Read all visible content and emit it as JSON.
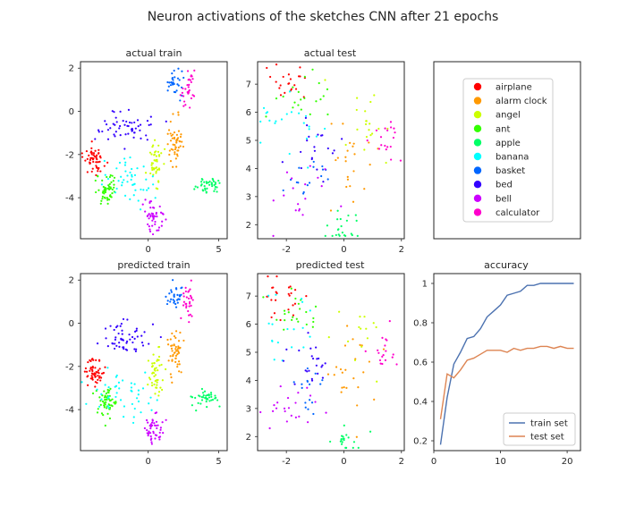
{
  "figure": {
    "title": "Neuron activations of the sketches CNN after 21 epochs"
  },
  "palette": {
    "airplane": "#ff0000",
    "alarm clock": "#ff9900",
    "angel": "#ccff00",
    "ant": "#33ff00",
    "apple": "#00ff66",
    "banana": "#00ffff",
    "basket": "#0066ff",
    "bed": "#3300ff",
    "bell": "#cc00ff",
    "calculator": "#ff00cc"
  },
  "chart_data": [
    {
      "id": "actual-train",
      "type": "scatter",
      "title": "actual train",
      "xlim": [
        -4.8,
        5.6
      ],
      "ylim": [
        -5.9,
        2.3
      ],
      "xticks": [
        0,
        5
      ],
      "yticks": [
        2,
        0,
        -2,
        -4
      ],
      "clusters": [
        {
          "class": "airplane",
          "cx": -3.8,
          "cy": -2.3,
          "sx": 0.35,
          "sy": 0.3,
          "n": 55
        },
        {
          "class": "alarm clock",
          "cx": 1.9,
          "cy": -1.3,
          "sx": 0.3,
          "sy": 0.55,
          "n": 50
        },
        {
          "class": "angel",
          "cx": 0.5,
          "cy": -2.3,
          "sx": 0.3,
          "sy": 0.5,
          "n": 45
        },
        {
          "class": "ant",
          "cx": -2.9,
          "cy": -3.6,
          "sx": 0.35,
          "sy": 0.4,
          "n": 55
        },
        {
          "class": "apple",
          "cx": 4.3,
          "cy": -3.4,
          "sx": 0.45,
          "sy": 0.2,
          "n": 40
        },
        {
          "class": "banana",
          "cx": -1.5,
          "cy": -3.2,
          "sx": 1.0,
          "sy": 0.55,
          "n": 45
        },
        {
          "class": "basket",
          "cx": 1.9,
          "cy": 1.3,
          "sx": 0.3,
          "sy": 0.3,
          "n": 30
        },
        {
          "class": "bed",
          "cx": -1.6,
          "cy": -0.7,
          "sx": 0.9,
          "sy": 0.35,
          "n": 55
        },
        {
          "class": "bell",
          "cx": 0.4,
          "cy": -4.9,
          "sx": 0.35,
          "sy": 0.4,
          "n": 45
        },
        {
          "class": "calculator",
          "cx": 2.9,
          "cy": 1.1,
          "sx": 0.25,
          "sy": 0.4,
          "n": 30
        }
      ]
    },
    {
      "id": "actual-test",
      "type": "scatter",
      "title": "actual test",
      "xlim": [
        -3.0,
        2.1
      ],
      "ylim": [
        1.5,
        7.8
      ],
      "xticks": [
        -2,
        0,
        2
      ],
      "yticks": [
        7,
        6,
        5,
        4,
        3,
        2
      ],
      "clusters": [
        {
          "class": "airplane",
          "cx": -2.0,
          "cy": 7.0,
          "sx": 0.45,
          "sy": 0.35,
          "n": 22
        },
        {
          "class": "alarm clock",
          "cx": 0.2,
          "cy": 4.0,
          "sx": 0.5,
          "sy": 0.7,
          "n": 22
        },
        {
          "class": "angel",
          "cx": 0.6,
          "cy": 5.3,
          "sx": 0.45,
          "sy": 0.7,
          "n": 20
        },
        {
          "class": "ant",
          "cx": -1.6,
          "cy": 6.4,
          "sx": 0.45,
          "sy": 0.45,
          "n": 20
        },
        {
          "class": "apple",
          "cx": 0.1,
          "cy": 1.9,
          "sx": 0.35,
          "sy": 0.3,
          "n": 22
        },
        {
          "class": "banana",
          "cx": -2.0,
          "cy": 5.6,
          "sx": 0.55,
          "sy": 0.8,
          "n": 22
        },
        {
          "class": "basket",
          "cx": -1.4,
          "cy": 3.6,
          "sx": 0.45,
          "sy": 0.45,
          "n": 16
        },
        {
          "class": "bed",
          "cx": -1.1,
          "cy": 4.6,
          "sx": 0.4,
          "sy": 0.6,
          "n": 20
        },
        {
          "class": "bell",
          "cx": -1.7,
          "cy": 3.0,
          "sx": 0.6,
          "sy": 0.5,
          "n": 18
        },
        {
          "class": "calculator",
          "cx": 1.5,
          "cy": 5.2,
          "sx": 0.25,
          "sy": 0.4,
          "n": 18
        }
      ]
    },
    {
      "id": "legend-panel",
      "type": "legend",
      "entries": [
        "airplane",
        "alarm clock",
        "angel",
        "ant",
        "apple",
        "banana",
        "basket",
        "bed",
        "bell",
        "calculator"
      ]
    },
    {
      "id": "predicted-train",
      "type": "scatter",
      "title": "predicted train",
      "xlim": [
        -4.8,
        5.6
      ],
      "ylim": [
        -5.9,
        2.3
      ],
      "xticks": [
        0,
        5
      ],
      "yticks": [
        2,
        0,
        -2,
        -4
      ],
      "clusters": [
        {
          "class": "airplane",
          "cx": -3.8,
          "cy": -2.3,
          "sx": 0.35,
          "sy": 0.3,
          "n": 55
        },
        {
          "class": "alarm clock",
          "cx": 1.9,
          "cy": -1.3,
          "sx": 0.3,
          "sy": 0.55,
          "n": 50
        },
        {
          "class": "angel",
          "cx": 0.5,
          "cy": -2.3,
          "sx": 0.3,
          "sy": 0.5,
          "n": 45
        },
        {
          "class": "ant",
          "cx": -2.9,
          "cy": -3.6,
          "sx": 0.35,
          "sy": 0.4,
          "n": 55
        },
        {
          "class": "apple",
          "cx": 4.3,
          "cy": -3.4,
          "sx": 0.45,
          "sy": 0.2,
          "n": 40
        },
        {
          "class": "banana",
          "cx": -1.5,
          "cy": -3.2,
          "sx": 1.0,
          "sy": 0.55,
          "n": 45
        },
        {
          "class": "basket",
          "cx": 1.9,
          "cy": 1.3,
          "sx": 0.3,
          "sy": 0.3,
          "n": 30
        },
        {
          "class": "bed",
          "cx": -1.6,
          "cy": -0.7,
          "sx": 0.9,
          "sy": 0.35,
          "n": 55
        },
        {
          "class": "bell",
          "cx": 0.4,
          "cy": -4.9,
          "sx": 0.35,
          "sy": 0.4,
          "n": 45
        },
        {
          "class": "calculator",
          "cx": 2.9,
          "cy": 1.1,
          "sx": 0.25,
          "sy": 0.4,
          "n": 30
        }
      ]
    },
    {
      "id": "predicted-test",
      "type": "scatter",
      "title": "predicted test",
      "xlim": [
        -3.0,
        2.1
      ],
      "ylim": [
        1.5,
        7.8
      ],
      "xticks": [
        -2,
        0,
        2
      ],
      "yticks": [
        7,
        6,
        5,
        4,
        3,
        2
      ],
      "clusters": [
        {
          "class": "airplane",
          "cx": -2.0,
          "cy": 7.0,
          "sx": 0.45,
          "sy": 0.35,
          "n": 24
        },
        {
          "class": "alarm clock",
          "cx": 0.2,
          "cy": 4.0,
          "sx": 0.5,
          "sy": 0.7,
          "n": 24
        },
        {
          "class": "angel",
          "cx": 0.6,
          "cy": 5.3,
          "sx": 0.45,
          "sy": 0.7,
          "n": 14
        },
        {
          "class": "ant",
          "cx": -1.6,
          "cy": 6.4,
          "sx": 0.45,
          "sy": 0.45,
          "n": 22
        },
        {
          "class": "apple",
          "cx": 0.1,
          "cy": 1.9,
          "sx": 0.35,
          "sy": 0.3,
          "n": 20
        },
        {
          "class": "banana",
          "cx": -2.0,
          "cy": 5.6,
          "sx": 0.55,
          "sy": 0.8,
          "n": 18
        },
        {
          "class": "basket",
          "cx": -1.4,
          "cy": 3.6,
          "sx": 0.45,
          "sy": 0.45,
          "n": 16
        },
        {
          "class": "bed",
          "cx": -1.1,
          "cy": 4.6,
          "sx": 0.4,
          "sy": 0.6,
          "n": 22
        },
        {
          "class": "bell",
          "cx": -1.7,
          "cy": 3.0,
          "sx": 0.6,
          "sy": 0.5,
          "n": 22
        },
        {
          "class": "calculator",
          "cx": 1.5,
          "cy": 5.2,
          "sx": 0.25,
          "sy": 0.4,
          "n": 18
        }
      ]
    },
    {
      "id": "accuracy",
      "type": "line",
      "title": "accuracy",
      "xlim": [
        0,
        22
      ],
      "ylim": [
        0.15,
        1.05
      ],
      "xticks": [
        0,
        10,
        20
      ],
      "yticks": [
        1.0,
        0.8,
        0.6,
        0.4,
        0.2
      ],
      "legend_placement": "lower-right",
      "x": [
        1,
        2,
        3,
        4,
        5,
        6,
        7,
        8,
        9,
        10,
        11,
        12,
        13,
        14,
        15,
        16,
        17,
        18,
        19,
        20,
        21
      ],
      "series": [
        {
          "name": "train set",
          "color": "#4c72b0",
          "values": [
            0.18,
            0.42,
            0.59,
            0.65,
            0.72,
            0.73,
            0.77,
            0.83,
            0.86,
            0.89,
            0.94,
            0.95,
            0.96,
            0.99,
            0.99,
            1.0,
            1.0,
            1.0,
            1.0,
            1.0,
            1.0
          ]
        },
        {
          "name": "test set",
          "color": "#dd8452",
          "values": [
            0.31,
            0.54,
            0.52,
            0.56,
            0.61,
            0.62,
            0.64,
            0.66,
            0.66,
            0.66,
            0.65,
            0.67,
            0.66,
            0.67,
            0.67,
            0.68,
            0.68,
            0.67,
            0.68,
            0.67,
            0.67
          ]
        }
      ]
    }
  ]
}
